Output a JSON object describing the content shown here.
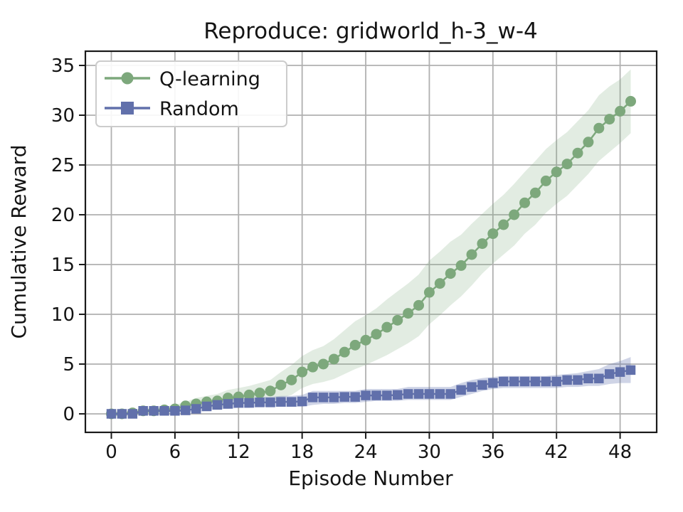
{
  "figure": {
    "background": "#ffffff"
  },
  "chart_data": {
    "type": "line",
    "title": "Reproduce: gridworld_h-3_w-4",
    "xlabel": "Episode Number",
    "ylabel": "Cumulative Reward",
    "xlim": [
      -2.45,
      51.45
    ],
    "ylim": [
      -1.86,
      36.43
    ],
    "xticks": [
      0,
      6,
      12,
      18,
      24,
      30,
      36,
      42,
      48
    ],
    "yticks": [
      0,
      5,
      10,
      15,
      20,
      25,
      30,
      35
    ],
    "grid": true,
    "grid_color": "#b0b0b0",
    "axis_color": "#1a1a1a",
    "legend_position": "upper-left",
    "x": [
      0,
      1,
      2,
      3,
      4,
      5,
      6,
      7,
      8,
      9,
      10,
      11,
      12,
      13,
      14,
      15,
      16,
      17,
      18,
      19,
      20,
      21,
      22,
      23,
      24,
      25,
      26,
      27,
      28,
      29,
      30,
      31,
      32,
      33,
      34,
      35,
      36,
      37,
      38,
      39,
      40,
      41,
      42,
      43,
      44,
      45,
      46,
      47,
      48,
      49
    ],
    "series": [
      {
        "name": "Q-learning",
        "marker": "circle",
        "color": "#7da87c",
        "band_opacity": 0.22,
        "values": [
          0.0,
          0.0,
          0.1,
          0.3,
          0.3,
          0.4,
          0.5,
          0.8,
          1.0,
          1.2,
          1.3,
          1.6,
          1.7,
          1.9,
          2.1,
          2.3,
          2.9,
          3.4,
          4.2,
          4.7,
          5.0,
          5.5,
          6.2,
          6.9,
          7.4,
          8.0,
          8.7,
          9.4,
          10.1,
          10.9,
          12.2,
          13.1,
          14.1,
          14.9,
          16.0,
          17.1,
          18.1,
          19.0,
          20.0,
          21.2,
          22.2,
          23.4,
          24.3,
          25.1,
          26.2,
          27.3,
          28.7,
          29.6,
          30.4,
          31.4
        ],
        "band_lower": [
          -0.1,
          -0.1,
          -0.1,
          0.1,
          0.1,
          0.1,
          0.2,
          0.3,
          0.5,
          0.6,
          0.6,
          0.8,
          0.9,
          1.0,
          1.1,
          1.2,
          1.6,
          1.9,
          2.6,
          3.0,
          3.2,
          3.5,
          4.0,
          4.5,
          4.9,
          5.4,
          5.9,
          6.5,
          7.1,
          7.8,
          9.0,
          9.9,
          10.9,
          11.8,
          12.9,
          14.1,
          15.1,
          16.0,
          16.9,
          18.1,
          19.0,
          20.2,
          21.1,
          21.9,
          23.0,
          24.1,
          25.4,
          26.3,
          27.2,
          28.2
        ],
        "band_upper": [
          0.1,
          0.1,
          0.2,
          0.5,
          0.6,
          0.7,
          0.9,
          1.2,
          1.6,
          1.8,
          2.0,
          2.4,
          2.6,
          2.8,
          3.1,
          3.4,
          4.2,
          4.9,
          5.8,
          6.4,
          6.8,
          7.5,
          8.4,
          9.3,
          9.9,
          10.6,
          11.5,
          12.3,
          13.1,
          14.0,
          15.4,
          16.3,
          17.3,
          18.0,
          19.1,
          20.1,
          21.1,
          22.0,
          23.1,
          24.3,
          25.4,
          26.6,
          27.5,
          28.3,
          29.4,
          30.5,
          32.0,
          32.9,
          33.6,
          34.6
        ]
      },
      {
        "name": "Random",
        "marker": "square",
        "color": "#6170ab",
        "band_opacity": 0.3,
        "values": [
          0.0,
          0.0,
          0.0,
          0.3,
          0.3,
          0.3,
          0.3,
          0.35,
          0.5,
          0.75,
          0.9,
          1.0,
          1.1,
          1.1,
          1.15,
          1.15,
          1.2,
          1.2,
          1.25,
          1.65,
          1.65,
          1.65,
          1.7,
          1.7,
          1.85,
          1.85,
          1.85,
          1.9,
          2.0,
          2.0,
          2.0,
          2.0,
          2.0,
          2.4,
          2.7,
          2.9,
          3.1,
          3.25,
          3.25,
          3.25,
          3.25,
          3.25,
          3.25,
          3.4,
          3.4,
          3.55,
          3.55,
          4.0,
          4.2,
          4.4
        ],
        "band_lower": [
          -0.1,
          -0.1,
          -0.1,
          0.1,
          0.1,
          0.1,
          0.1,
          0.1,
          0.2,
          0.3,
          0.5,
          0.5,
          0.6,
          0.6,
          0.7,
          0.7,
          0.7,
          0.7,
          0.7,
          0.9,
          1.0,
          1.0,
          1.1,
          1.1,
          1.2,
          1.3,
          1.3,
          1.3,
          1.4,
          1.4,
          1.4,
          1.4,
          1.4,
          1.7,
          2.0,
          2.3,
          2.5,
          2.6,
          2.6,
          2.6,
          2.6,
          2.6,
          2.6,
          2.7,
          2.7,
          2.8,
          2.8,
          3.0,
          3.1,
          3.1
        ],
        "band_upper": [
          0.1,
          0.1,
          0.1,
          0.5,
          0.5,
          0.5,
          0.5,
          0.6,
          0.8,
          1.2,
          1.4,
          1.5,
          1.6,
          1.6,
          1.7,
          1.7,
          1.8,
          1.8,
          1.9,
          2.3,
          2.3,
          2.3,
          2.3,
          2.3,
          2.5,
          2.5,
          2.5,
          2.5,
          2.7,
          2.7,
          2.7,
          2.7,
          2.7,
          3.1,
          3.4,
          3.6,
          3.7,
          3.8,
          3.8,
          3.8,
          3.8,
          3.8,
          3.9,
          4.0,
          4.1,
          4.3,
          4.5,
          5.0,
          5.3,
          5.7
        ]
      }
    ]
  }
}
